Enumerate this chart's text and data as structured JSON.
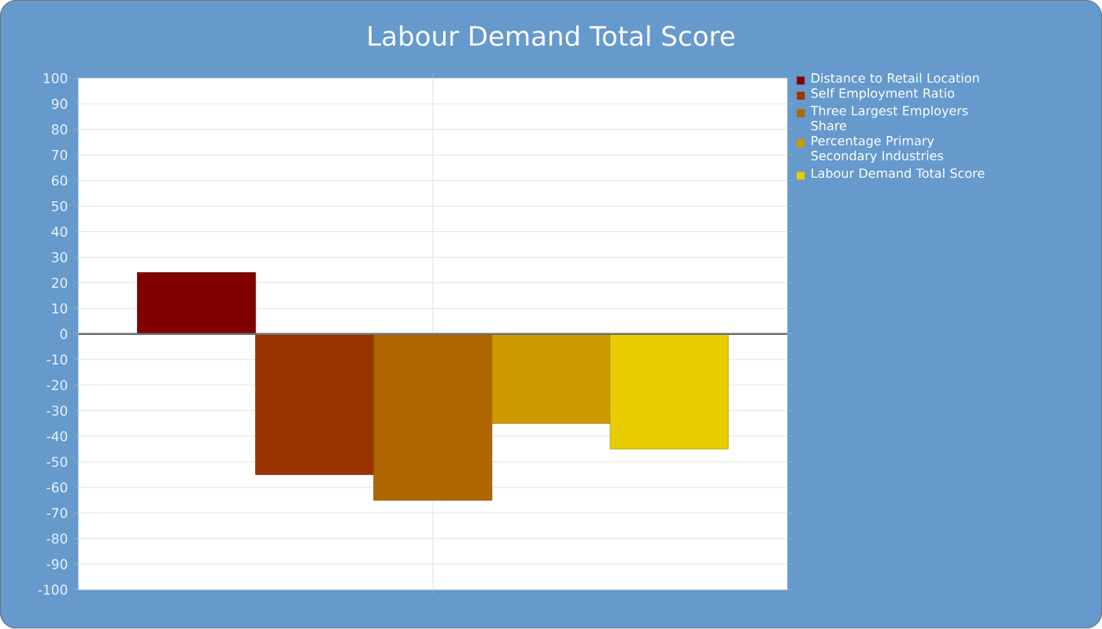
{
  "chart_data": {
    "type": "bar",
    "title": "Labour Demand Total Score",
    "categories": [
      null
    ],
    "series": [
      {
        "name": "Distance to Retail Location",
        "color": "#800000",
        "values": [
          24
        ]
      },
      {
        "name": "Self Employment Ratio",
        "color": "#993300",
        "values": [
          -55
        ]
      },
      {
        "name": "Three Largest Employers Share",
        "color": "#b06600",
        "values": [
          -65
        ]
      },
      {
        "name": "Percentage Primary Secondary Industries",
        "color": "#cc9900",
        "values": [
          -35
        ]
      },
      {
        "name": "Labour Demand Total Score",
        "color": "#e6cc00",
        "values": [
          -45
        ]
      }
    ],
    "ylim": [
      -100,
      100
    ],
    "yticks": [
      -100,
      -90,
      -80,
      -70,
      -60,
      -50,
      -40,
      -30,
      -20,
      -10,
      0,
      10,
      20,
      30,
      40,
      50,
      60,
      70,
      80,
      90,
      100
    ],
    "grid": true,
    "legend": "right"
  }
}
